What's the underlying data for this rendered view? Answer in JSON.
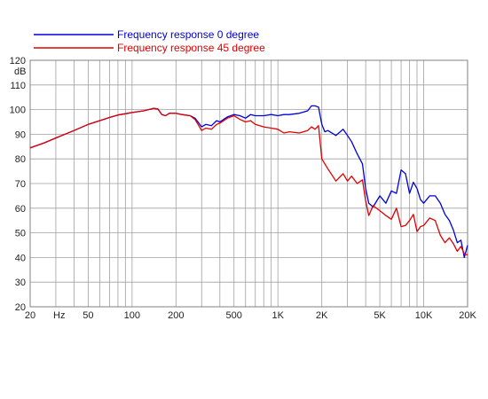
{
  "chart_data": {
    "type": "line",
    "x_scale": "log",
    "xlim": [
      20,
      20000
    ],
    "ylim": [
      20,
      120
    ],
    "grid": true,
    "legend_position": "top",
    "y_unit": "dB",
    "x_unit": "Hz",
    "x_ticks": [
      {
        "value": 20,
        "label": "20"
      },
      {
        "value": 50,
        "label": "50"
      },
      {
        "value": 100,
        "label": "100"
      },
      {
        "value": 200,
        "label": "200"
      },
      {
        "value": 500,
        "label": "500"
      },
      {
        "value": 1000,
        "label": "1K"
      },
      {
        "value": 2000,
        "label": "2K"
      },
      {
        "value": 5000,
        "label": "5K"
      },
      {
        "value": 10000,
        "label": "10K"
      },
      {
        "value": 20000,
        "label": "20K"
      }
    ],
    "y_ticks": [
      {
        "value": 20,
        "label": "20"
      },
      {
        "value": 30,
        "label": "30"
      },
      {
        "value": 40,
        "label": "40"
      },
      {
        "value": 50,
        "label": "50"
      },
      {
        "value": 60,
        "label": "60"
      },
      {
        "value": 70,
        "label": "70"
      },
      {
        "value": 80,
        "label": "80"
      },
      {
        "value": 90,
        "label": "90"
      },
      {
        "value": 100,
        "label": "100"
      },
      {
        "value": 110,
        "label": "110"
      },
      {
        "value": 120,
        "label": "120"
      }
    ],
    "series": [
      {
        "name": "Frequency response 0 degree",
        "color": "#0000dd",
        "x": [
          20,
          25,
          30,
          40,
          50,
          60,
          70,
          80,
          90,
          100,
          120,
          140,
          150,
          160,
          170,
          180,
          200,
          220,
          250,
          270,
          300,
          320,
          350,
          380,
          400,
          450,
          500,
          550,
          600,
          650,
          700,
          800,
          900,
          1000,
          1100,
          1200,
          1400,
          1600,
          1700,
          1800,
          1900,
          2000,
          2100,
          2200,
          2500,
          2800,
          3000,
          3200,
          3500,
          3800,
          4000,
          4200,
          4500,
          5000,
          5500,
          6000,
          6500,
          7000,
          7500,
          8000,
          8500,
          9000,
          9500,
          10000,
          11000,
          12000,
          13000,
          14000,
          15000,
          16000,
          17000,
          18000,
          19000,
          20000
        ],
        "y": [
          84.5,
          86.5,
          88.5,
          91.5,
          94.0,
          95.5,
          96.8,
          97.8,
          98.3,
          98.8,
          99.5,
          100.5,
          100.3,
          98.0,
          97.5,
          98.5,
          98.5,
          98.0,
          97.5,
          96.5,
          93.0,
          94.0,
          93.5,
          95.5,
          95.0,
          97.0,
          98.0,
          97.5,
          96.5,
          98.0,
          97.5,
          97.5,
          98.0,
          97.5,
          98.0,
          98.0,
          98.5,
          99.5,
          101.5,
          101.5,
          101.0,
          94.0,
          91.0,
          91.5,
          89.5,
          92.0,
          89.5,
          87.0,
          82.0,
          78.0,
          68.0,
          62.0,
          60.5,
          65.0,
          62.0,
          67.0,
          66.0,
          75.5,
          74.0,
          66.0,
          70.5,
          68.0,
          63.5,
          62.0,
          65.0,
          65.0,
          62.0,
          57.5,
          55.0,
          51.0,
          46.0,
          47.0,
          40.0,
          45.0
        ]
      },
      {
        "name": "Frequency response 45 degree",
        "color": "#e00000",
        "x": [
          20,
          25,
          30,
          40,
          50,
          60,
          70,
          80,
          90,
          100,
          120,
          140,
          150,
          160,
          170,
          180,
          200,
          220,
          250,
          270,
          300,
          320,
          350,
          380,
          400,
          450,
          500,
          550,
          600,
          650,
          700,
          800,
          900,
          1000,
          1100,
          1200,
          1400,
          1600,
          1700,
          1800,
          1900,
          2000,
          2100,
          2200,
          2500,
          2800,
          3000,
          3200,
          3500,
          3800,
          4000,
          4200,
          4500,
          5000,
          5500,
          6000,
          6500,
          7000,
          7500,
          8000,
          8500,
          9000,
          9500,
          10000,
          11000,
          12000,
          13000,
          14000,
          15000,
          16000,
          17000,
          18000,
          19000,
          20000
        ],
        "y": [
          84.5,
          86.5,
          88.5,
          91.5,
          94.0,
          95.5,
          96.8,
          97.8,
          98.3,
          98.8,
          99.5,
          100.5,
          100.3,
          98.0,
          97.5,
          98.5,
          98.5,
          98.0,
          97.5,
          96.0,
          91.5,
          92.5,
          92.0,
          94.0,
          94.5,
          96.5,
          97.5,
          96.0,
          95.0,
          95.5,
          94.0,
          93.0,
          92.5,
          92.0,
          90.5,
          91.0,
          90.5,
          91.5,
          93.0,
          92.0,
          93.5,
          80.0,
          78.0,
          76.0,
          71.0,
          74.0,
          71.0,
          73.0,
          70.0,
          71.5,
          63.0,
          57.0,
          61.0,
          59.0,
          57.0,
          55.5,
          60.0,
          52.5,
          53.0,
          55.0,
          57.5,
          50.5,
          52.5,
          53.0,
          56.0,
          55.0,
          49.0,
          46.0,
          48.0,
          45.5,
          42.5,
          44.5,
          41.5,
          41.0
        ]
      }
    ]
  }
}
